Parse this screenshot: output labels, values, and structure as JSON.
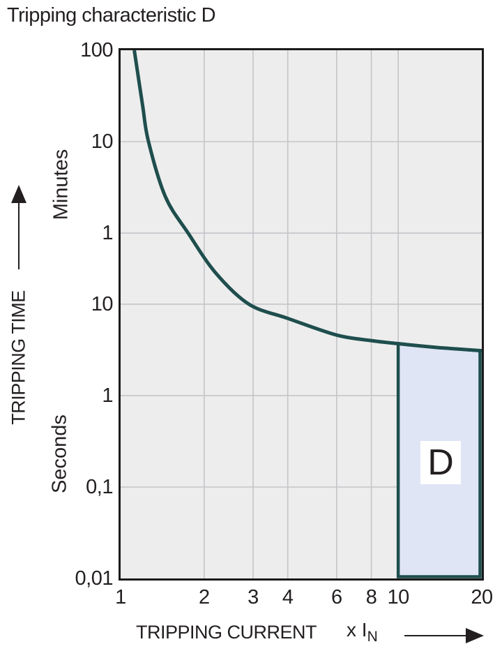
{
  "chart_data": {
    "type": "line",
    "title": "Tripping characteristic D",
    "x_axis": {
      "label": "TRIPPING CURRENT",
      "unit": "x I",
      "unit_subscript": "N",
      "scale": "log",
      "range": [
        1,
        20
      ],
      "tick_labels": [
        "1",
        "2",
        "3",
        "4",
        "6",
        "8",
        "10",
        "20"
      ],
      "tick_values": [
        1,
        2,
        3,
        4,
        6,
        8,
        10,
        20
      ]
    },
    "y_axis": {
      "label": "TRIPPING TIME",
      "upper_unit": "Minutes",
      "lower_unit": "Seconds",
      "scale": "log, continuous in seconds (minutes shown above 1 min)",
      "range_seconds": [
        0.01,
        6000
      ],
      "ticks": [
        {
          "label": "100",
          "seconds": 6000
        },
        {
          "label": "10",
          "seconds": 600
        },
        {
          "label": "1",
          "seconds": 60
        },
        {
          "label": "10",
          "seconds": 10
        },
        {
          "label": "1",
          "seconds": 1
        },
        {
          "label": "0,1",
          "seconds": 0.1
        },
        {
          "label": "0,01",
          "seconds": 0.01
        }
      ]
    },
    "grid": true,
    "legend": "none",
    "series": [
      {
        "name": "D tripping characteristic curve",
        "color": "#1e4e4d",
        "points_x_times_In_vs_seconds": [
          [
            1.12,
            6000
          ],
          [
            1.2,
            1500
          ],
          [
            1.26,
            600
          ],
          [
            1.45,
            150
          ],
          [
            1.75,
            60
          ],
          [
            2.2,
            22
          ],
          [
            2.9,
            10
          ],
          [
            4,
            7
          ],
          [
            6,
            4.6
          ],
          [
            8,
            4.0
          ],
          [
            10,
            3.7
          ],
          [
            12,
            3.5
          ],
          [
            14,
            3.35
          ],
          [
            16,
            3.25
          ],
          [
            20,
            3.1
          ]
        ]
      }
    ],
    "region": {
      "label": "D",
      "x_from": 10,
      "x_to": 20,
      "t_bottom_seconds": 0.01,
      "t_top": "follows curve (~3.7 s at 10×In to ~3.1 s at 20×In)",
      "fill": "#dfe5f4",
      "border": "#1e4e4d"
    },
    "colors": {
      "plot_background": "#ededed",
      "grid_line": "#c5c5c9",
      "plot_border": "#1a1a1a",
      "text": "#231f20",
      "curve": "#1e4e4d",
      "region_fill": "#dfe5f4",
      "region_label_background": "#ffffff"
    }
  }
}
